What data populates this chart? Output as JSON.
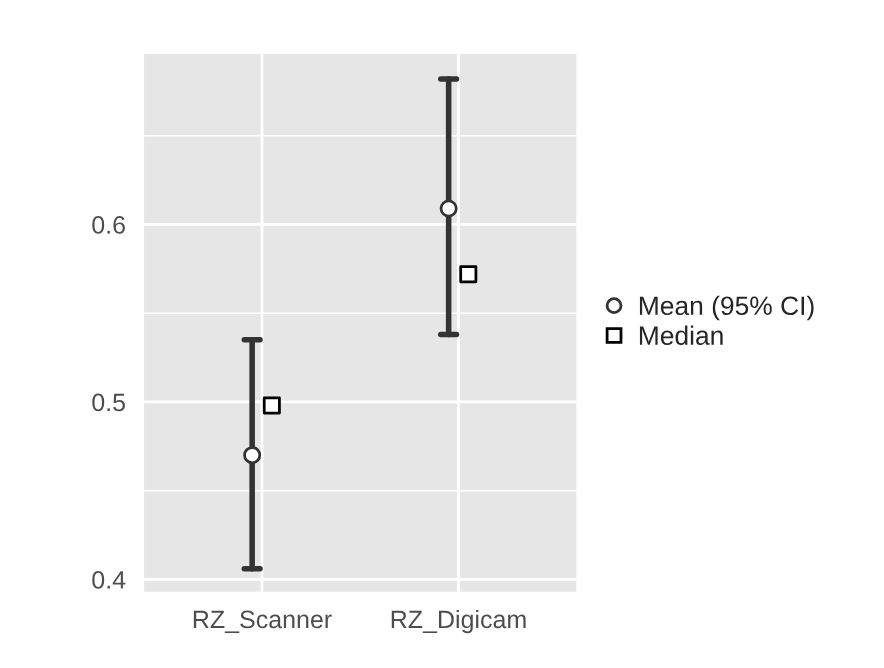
{
  "chart_data": {
    "type": "scatter",
    "categories": [
      "RZ_Scanner",
      "RZ_Digicam"
    ],
    "series": [
      {
        "name": "Mean (95% CI)",
        "color": "#333333",
        "marker": "circle",
        "values": [
          0.47,
          0.609
        ],
        "errors": [
          [
            0.406,
            0.535
          ],
          [
            0.538,
            0.682
          ]
        ]
      },
      {
        "name": "Median",
        "color": "#000000",
        "marker": "square",
        "values": [
          0.498,
          0.572
        ]
      }
    ],
    "ylim": [
      0.393,
      0.696
    ],
    "yticks": [
      0.4,
      0.5,
      0.6
    ],
    "grid": true,
    "legend": "right"
  }
}
